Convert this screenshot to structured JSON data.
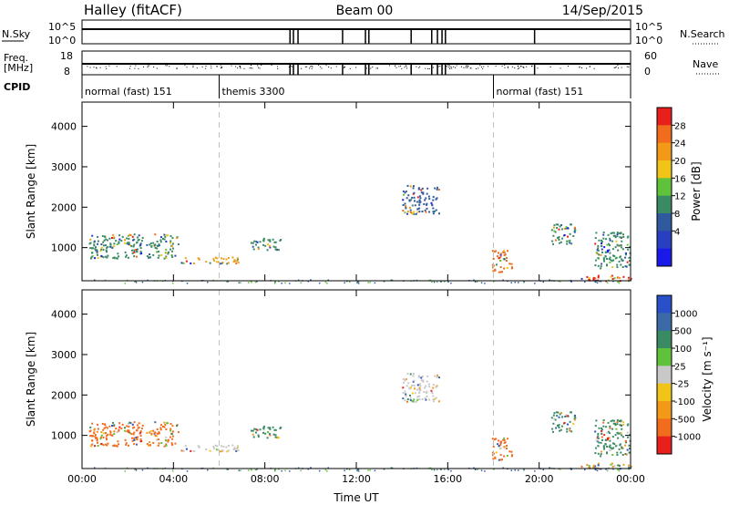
{
  "header": {
    "station": "Halley (fitACF)",
    "beam": "Beam 00",
    "date": "14/Sep/2015"
  },
  "strips": {
    "nsky_label": "N.Sky",
    "nsky_ticks": [
      "10^5",
      "10^0"
    ],
    "nsearch_label": "N.Search",
    "nsearch_ticks": [
      "10^5",
      "10^0"
    ],
    "freq_label": "Freq.",
    "freq_unit": "[MHz]",
    "freq_ticks": [
      "18",
      "8"
    ],
    "nave_label": "Nave",
    "nave_ticks": [
      "60",
      "0"
    ],
    "cpid_label": "CPID",
    "cpid_segments": [
      {
        "label": "normal (fast) 151",
        "start": 0,
        "end": 6
      },
      {
        "label": "themis 3300",
        "start": 6,
        "end": 18
      },
      {
        "label": "normal (fast) 151",
        "start": 18,
        "end": 24
      }
    ],
    "gap_times_ut": [
      9.1,
      9.25,
      9.45,
      11.4,
      12.4,
      12.55,
      14.4,
      15.3,
      15.55,
      15.75,
      15.9,
      19.8
    ]
  },
  "chart_data": [
    {
      "type": "heatmap",
      "title": "Power",
      "ylabel": "Slant Range [km]",
      "xlabel": "Time UT",
      "x_ticks": [
        "00:00",
        "04:00",
        "08:00",
        "12:00",
        "16:00",
        "20:00",
        "00:00"
      ],
      "x_tick_hours": [
        0,
        4,
        8,
        12,
        16,
        20,
        24
      ],
      "xlim_hours": [
        0,
        24
      ],
      "y_ticks": [
        1000,
        2000,
        3000,
        4000
      ],
      "ylim": [
        180,
        4600
      ],
      "colorbar_label": "Power [dB]",
      "colorbar_ticks": [
        "28",
        "24",
        "20",
        "16",
        "12",
        "8",
        "4"
      ],
      "colorbar_colors": [
        "#e8201c",
        "#f26c1e",
        "#f29a18",
        "#f0c419",
        "#5ec33b",
        "#3a8a63",
        "#2f5a9e",
        "#2840c0",
        "#1a1ae8"
      ],
      "cpid_change_hours": [
        6,
        18
      ],
      "scatter_regions": [
        {
          "t0": 0.3,
          "t1": 4.2,
          "r0": 750,
          "r1": 1350,
          "color": "#3a8a63",
          "hint": "mixed power"
        },
        {
          "t0": 4.3,
          "t1": 6.9,
          "r0": 620,
          "r1": 780,
          "color": "#e8a020",
          "hint": "mixed power"
        },
        {
          "t0": 7.3,
          "t1": 8.7,
          "r0": 950,
          "r1": 1250,
          "color": "#3a8a63",
          "hint": "mixed power"
        },
        {
          "t0": 14.0,
          "t1": 15.6,
          "r0": 1850,
          "r1": 2550,
          "color": "#2f5a9e",
          "hint": "low power"
        },
        {
          "t0": 17.9,
          "t1": 18.8,
          "r0": 400,
          "r1": 950,
          "color": "#e86c1e",
          "hint": "high power"
        },
        {
          "t0": 20.5,
          "t1": 21.6,
          "r0": 1100,
          "r1": 1600,
          "color": "#3a8a63",
          "hint": "mid power"
        },
        {
          "t0": 22.4,
          "t1": 24.0,
          "r0": 500,
          "r1": 1400,
          "color": "#3a8a63",
          "hint": "mixed power"
        },
        {
          "t0": 21.8,
          "t1": 24.0,
          "r0": 190,
          "r1": 330,
          "color": "#e8201c",
          "hint": "high power"
        }
      ]
    },
    {
      "type": "heatmap",
      "title": "Velocity",
      "ylabel": "Slant Range [km]",
      "xlabel": "Time UT",
      "x_ticks": [
        "00:00",
        "04:00",
        "08:00",
        "12:00",
        "16:00",
        "20:00",
        "00:00"
      ],
      "x_tick_hours": [
        0,
        4,
        8,
        12,
        16,
        20,
        24
      ],
      "xlim_hours": [
        0,
        24
      ],
      "y_ticks": [
        1000,
        2000,
        3000,
        4000
      ],
      "ylim": [
        180,
        4600
      ],
      "colorbar_label": "Velocity [m s⁻¹]",
      "colorbar_ticks": [
        "1000",
        "500",
        "100",
        "25",
        "-25",
        "-100",
        "-500",
        "-1000"
      ],
      "colorbar_colors": [
        "#2850c8",
        "#3a6aa8",
        "#3a8a63",
        "#5ec33b",
        "#c8c8c8",
        "#f0c419",
        "#f29a18",
        "#f26c1e",
        "#e8201c"
      ],
      "cpid_change_hours": [
        6,
        18
      ],
      "scatter_regions": [
        {
          "t0": 0.3,
          "t1": 4.2,
          "r0": 750,
          "r1": 1350,
          "color": "#f26c1e",
          "hint": "towards"
        },
        {
          "t0": 4.3,
          "t1": 6.9,
          "r0": 620,
          "r1": 780,
          "color": "#c8c8c8",
          "hint": "near zero"
        },
        {
          "t0": 7.3,
          "t1": 8.7,
          "r0": 950,
          "r1": 1250,
          "color": "#3a8a63",
          "hint": "away"
        },
        {
          "t0": 14.0,
          "t1": 15.6,
          "r0": 1850,
          "r1": 2550,
          "color": "#c8c8c8",
          "hint": "near zero"
        },
        {
          "t0": 17.9,
          "t1": 18.8,
          "r0": 400,
          "r1": 950,
          "color": "#f26c1e",
          "hint": "towards"
        },
        {
          "t0": 20.5,
          "t1": 21.6,
          "r0": 1100,
          "r1": 1600,
          "color": "#3a8a63",
          "hint": "away"
        },
        {
          "t0": 22.4,
          "t1": 24.0,
          "r0": 500,
          "r1": 1400,
          "color": "#3a8a63",
          "hint": "away"
        },
        {
          "t0": 21.8,
          "t1": 24.0,
          "r0": 190,
          "r1": 330,
          "color": "#f29a18",
          "hint": "towards"
        }
      ]
    }
  ]
}
